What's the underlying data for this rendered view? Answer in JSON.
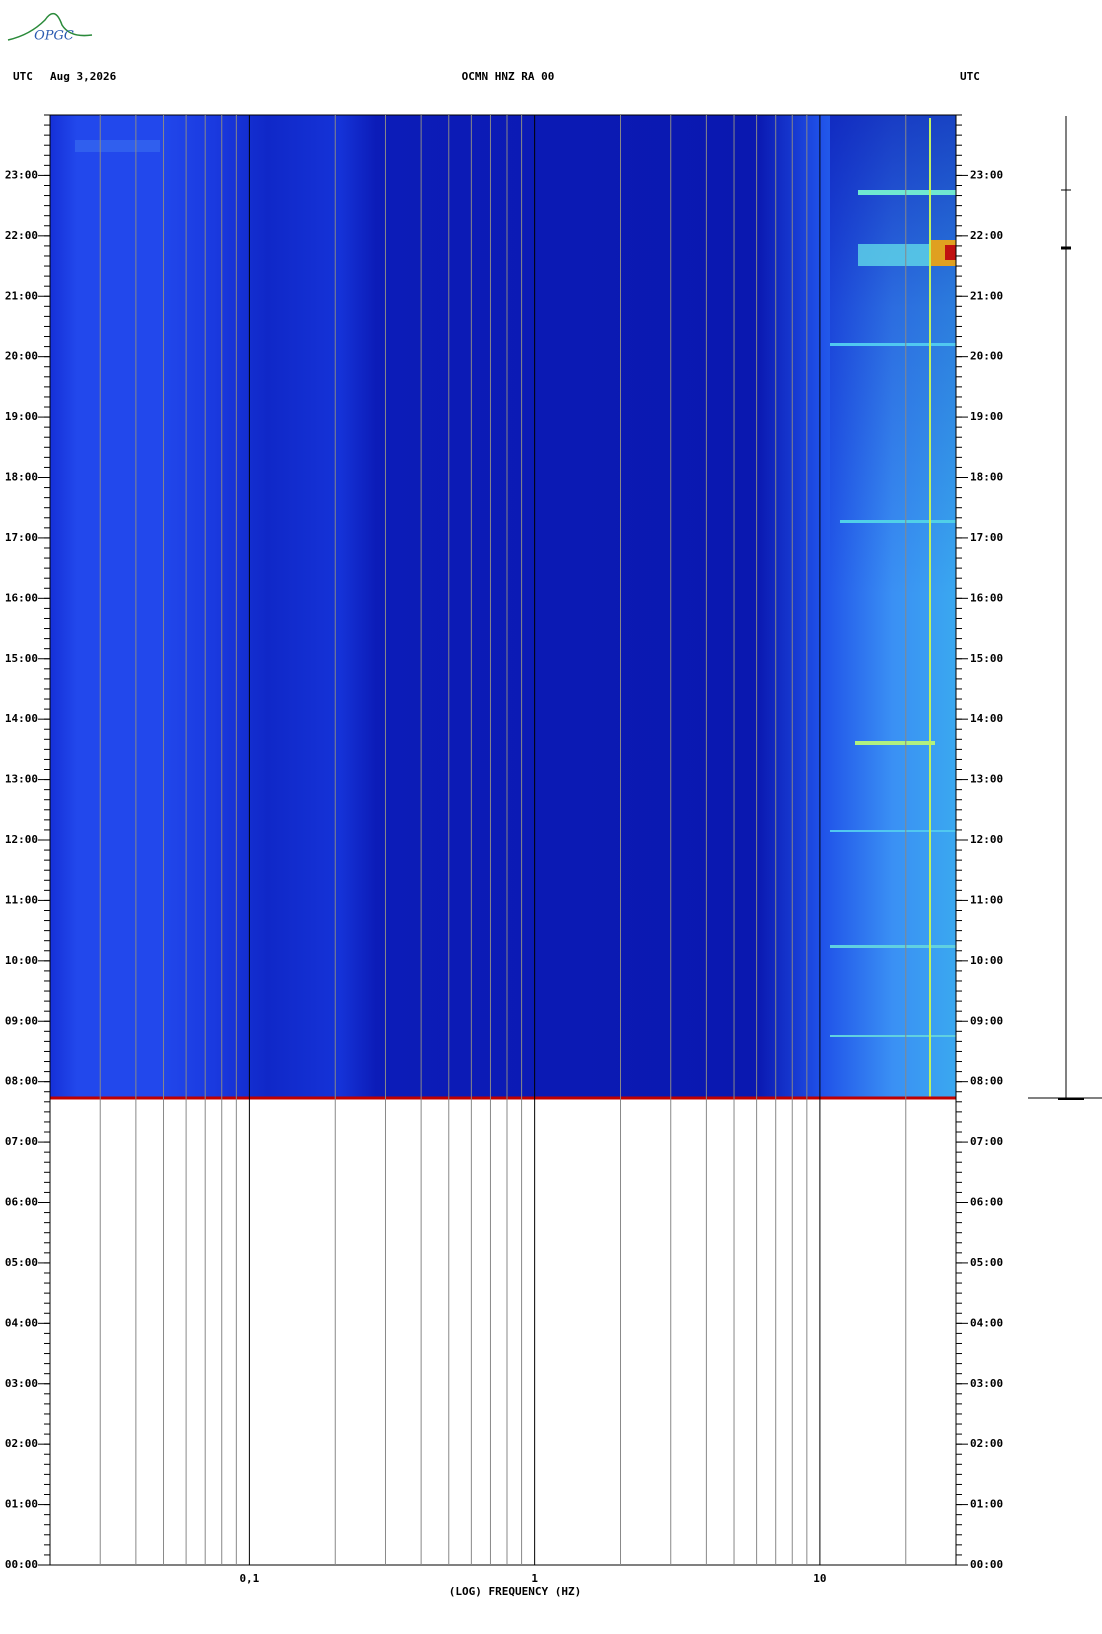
{
  "logo": "OPGC",
  "chart_data": {
    "type": "spectrogram",
    "title": "OCMN HNZ RA 00",
    "date": "Aug 3,2026",
    "left_timezone": "UTC",
    "right_timezone": "UTC",
    "x_label": "(LOG) FREQUENCY (HZ)",
    "x_log": true,
    "xlim": [
      0.02,
      30
    ],
    "xticks": [
      {
        "value": 0.1,
        "label": "0,1"
      },
      1,
      10
    ],
    "x_minor_grid": [
      0.03,
      0.04,
      0.05,
      0.06,
      0.07,
      0.08,
      0.09,
      0.2,
      0.3,
      0.4,
      0.5,
      0.6,
      0.7,
      0.8,
      0.9,
      2,
      3,
      4,
      5,
      6,
      7,
      8,
      9,
      20
    ],
    "ylim": [
      0,
      24
    ],
    "yticks": [
      {
        "value": 0,
        "label": "00:00"
      },
      {
        "value": 1,
        "label": "01:00"
      },
      {
        "value": 2,
        "label": "02:00"
      },
      {
        "value": 3,
        "label": "03:00"
      },
      {
        "value": 4,
        "label": "04:00"
      },
      {
        "value": 5,
        "label": "05:00"
      },
      {
        "value": 6,
        "label": "06:00"
      },
      {
        "value": 7,
        "label": "07:00"
      },
      {
        "value": 8,
        "label": "08:00"
      },
      {
        "value": 9,
        "label": "09:00"
      },
      {
        "value": 10,
        "label": "10:00"
      },
      {
        "value": 11,
        "label": "11:00"
      },
      {
        "value": 12,
        "label": "12:00"
      },
      {
        "value": 13,
        "label": "13:00"
      },
      {
        "value": 14,
        "label": "14:00"
      },
      {
        "value": 15,
        "label": "15:00"
      },
      {
        "value": 16,
        "label": "16:00"
      },
      {
        "value": 17,
        "label": "17:00"
      },
      {
        "value": 18,
        "label": "18:00"
      },
      {
        "value": 19,
        "label": "19:00"
      },
      {
        "value": 20,
        "label": "20:00"
      },
      {
        "value": 21,
        "label": "21:00"
      },
      {
        "value": 22,
        "label": "22:00"
      },
      {
        "value": 23,
        "label": "23:00"
      }
    ]
  }
}
